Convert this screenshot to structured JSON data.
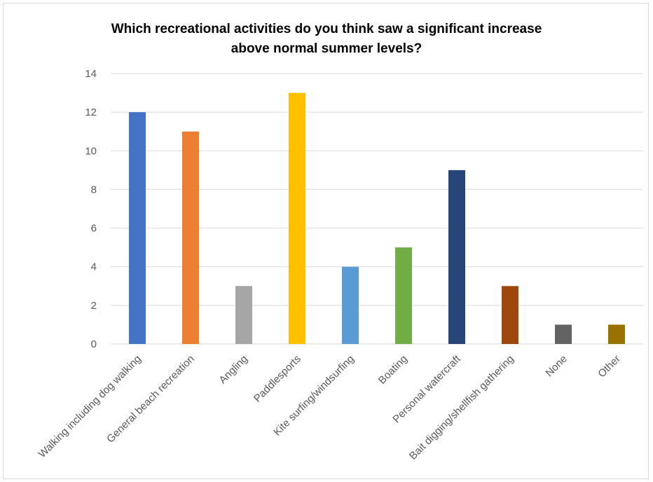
{
  "chart_data": {
    "type": "bar",
    "title_line1": "Which recreational activities do you think saw a significant increase",
    "title_line2": "above normal summer levels?",
    "xlabel": "",
    "ylabel": "",
    "ylim": [
      0,
      14
    ],
    "yticks": [
      0,
      2,
      4,
      6,
      8,
      10,
      12,
      14
    ],
    "grid": true,
    "legend": "none",
    "categories": [
      "Walking including dog walking",
      "General beach recreation",
      "Angling",
      "Paddlesports",
      "Kite surfing/windsurfing",
      "Boating",
      "Personal watercraft",
      "Bait digging/shellfish gathering",
      "None",
      "Other"
    ],
    "values": [
      12,
      11,
      3,
      13,
      4,
      5,
      9,
      3,
      1,
      1
    ],
    "colors": [
      "#4472C4",
      "#ED7D31",
      "#A5A5A5",
      "#FFC000",
      "#5B9BD5",
      "#70AD47",
      "#264478",
      "#9E480E",
      "#636363",
      "#997300"
    ]
  }
}
